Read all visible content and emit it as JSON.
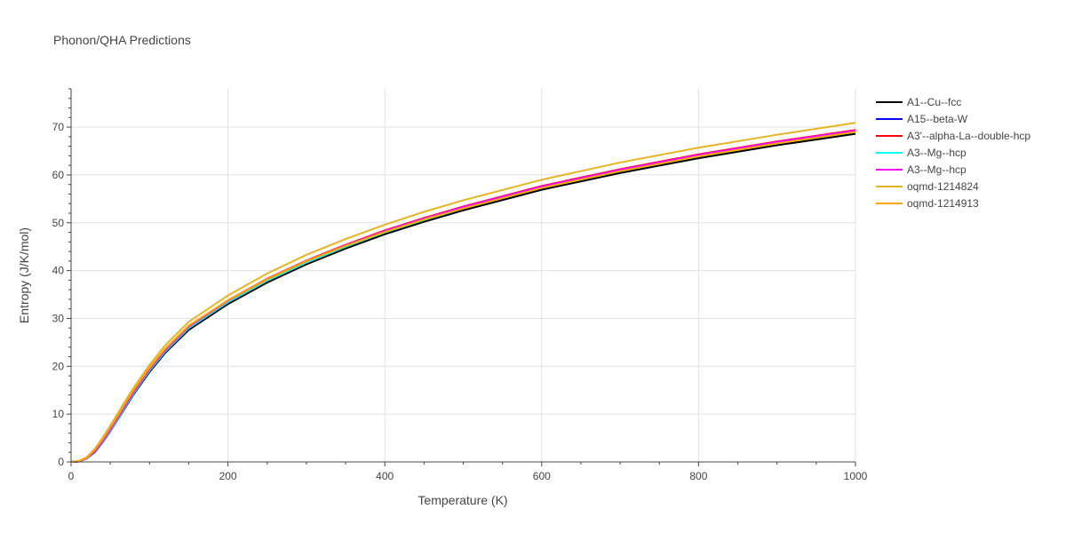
{
  "chart_data": {
    "type": "line",
    "title": "Phonon/QHA Predictions",
    "xlabel": "Temperature (K)",
    "ylabel": "Entropy (J/K/mol)",
    "xlim": [
      0,
      1000
    ],
    "ylim": [
      0,
      78
    ],
    "x_ticks": [
      0,
      200,
      400,
      600,
      800,
      1000
    ],
    "y_ticks": [
      0,
      10,
      20,
      30,
      40,
      50,
      60,
      70
    ],
    "grid": true,
    "legend_position": "right",
    "x": [
      0,
      10,
      20,
      30,
      40,
      50,
      60,
      70,
      80,
      100,
      120,
      150,
      200,
      250,
      300,
      350,
      400,
      450,
      500,
      600,
      700,
      800,
      900,
      1000
    ],
    "series": [
      {
        "name": "A1--Cu--fcc",
        "color": "#000000",
        "values": [
          0,
          0.1,
          0.7,
          2.0,
          4.0,
          6.4,
          9.0,
          11.6,
          14.2,
          18.8,
          22.8,
          27.6,
          33.0,
          37.5,
          41.3,
          44.6,
          47.6,
          50.2,
          52.6,
          56.9,
          60.4,
          63.5,
          66.2,
          68.6
        ]
      },
      {
        "name": "A15--beta-W",
        "color": "#0000ff",
        "values": [
          0,
          0.1,
          0.8,
          2.2,
          4.3,
          6.8,
          9.4,
          12.1,
          14.7,
          19.3,
          23.3,
          28.2,
          33.6,
          38.1,
          41.9,
          45.2,
          48.2,
          50.8,
          53.2,
          57.5,
          61.0,
          64.1,
          66.8,
          69.2
        ]
      },
      {
        "name": "A3'--alpha-La--double-hcp",
        "color": "#ff0000",
        "values": [
          0,
          0.1,
          0.8,
          2.3,
          4.4,
          6.9,
          9.5,
          12.2,
          14.8,
          19.5,
          23.5,
          28.4,
          33.8,
          38.3,
          42.1,
          45.4,
          48.4,
          51.0,
          53.4,
          57.7,
          61.2,
          64.3,
          67.0,
          69.4
        ]
      },
      {
        "name": "A3--Mg--hcp",
        "color": "#00ffff",
        "values": [
          0,
          0.1,
          0.7,
          2.1,
          4.1,
          6.5,
          9.1,
          11.8,
          14.4,
          19.1,
          23.1,
          28.0,
          33.4,
          37.9,
          41.7,
          45.0,
          48.0,
          50.6,
          53.0,
          57.3,
          60.8,
          63.9,
          66.6,
          69.0
        ]
      },
      {
        "name": "A3--Mg--hcp",
        "color": "#ff00ff",
        "values": [
          0,
          0.1,
          0.8,
          2.2,
          4.3,
          6.8,
          9.4,
          12.1,
          14.7,
          19.4,
          23.4,
          28.3,
          33.7,
          38.2,
          42.0,
          45.3,
          48.3,
          50.9,
          53.3,
          57.6,
          61.1,
          64.2,
          66.9,
          69.3
        ]
      },
      {
        "name": "oqmd-1214824",
        "color": "#e6b422",
        "values": [
          0,
          0.2,
          1.0,
          2.7,
          5.0,
          7.6,
          10.3,
          13.0,
          15.6,
          20.3,
          24.4,
          29.3,
          34.8,
          39.4,
          43.3,
          46.6,
          49.6,
          52.3,
          54.7,
          59.0,
          62.6,
          65.7,
          68.4,
          70.9
        ]
      },
      {
        "name": "oqmd-1214913",
        "color": "#ffa500",
        "values": [
          0,
          0.2,
          0.9,
          2.5,
          4.7,
          7.2,
          9.8,
          12.5,
          15.1,
          19.7,
          23.7,
          28.5,
          33.8,
          38.2,
          42.0,
          45.2,
          48.1,
          50.7,
          53.0,
          57.3,
          60.8,
          63.9,
          66.6,
          69.0
        ]
      }
    ]
  }
}
